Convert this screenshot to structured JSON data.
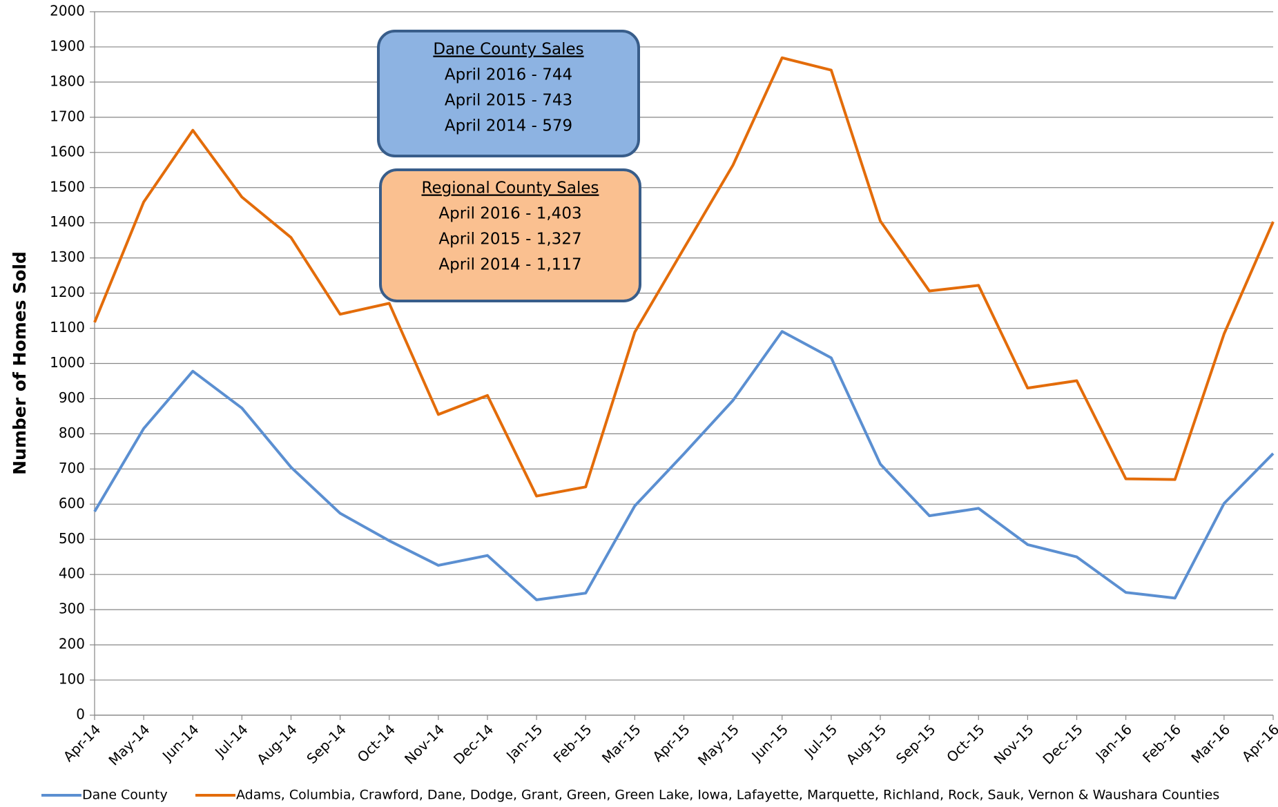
{
  "chart_data": {
    "type": "line",
    "y_label": "Number of Homes Sold",
    "categories": [
      "Apr-14",
      "May-14",
      "Jun-14",
      "Jul-14",
      "Aug-14",
      "Sep-14",
      "Oct-14",
      "Nov-14",
      "Dec-14",
      "Jan-15",
      "Feb-15",
      "Mar-15",
      "Apr-15",
      "May-15",
      "Jun-15",
      "Jul-15",
      "Aug-15",
      "Sep-15",
      "Oct-15",
      "Nov-15",
      "Dec-15",
      "Jan-16",
      "Feb-16",
      "Mar-16",
      "Apr-16"
    ],
    "series": [
      {
        "name": "Dane County",
        "color": "#5b8fd1",
        "values": [
          579,
          815,
          978,
          873,
          705,
          574,
          496,
          426,
          454,
          328,
          347,
          595,
          743,
          895,
          1091,
          1016,
          714,
          567,
          588,
          485,
          450,
          349,
          333,
          602,
          744
        ]
      },
      {
        "name": "Adams, Columbia, Crawford, Dane, Dodge, Grant, Green, Green Lake, Iowa, Lafayette, Marquette, Richland, Rock, Sauk, Vernon & Waushara Counties",
        "color": "#e36c0a",
        "values": [
          1117,
          1459,
          1663,
          1473,
          1358,
          1140,
          1171,
          855,
          909,
          623,
          649,
          1089,
          1327,
          1564,
          1869,
          1834,
          1405,
          1206,
          1222,
          930,
          951,
          672,
          670,
          1084,
          1403
        ]
      }
    ],
    "ylim": [
      0,
      2000
    ],
    "yticks": [
      0,
      100,
      200,
      300,
      400,
      500,
      600,
      700,
      800,
      900,
      1000,
      1100,
      1200,
      1300,
      1400,
      1500,
      1600,
      1700,
      1800,
      1900,
      2000
    ],
    "grid": true,
    "legend": "bottom",
    "annotations": [
      {
        "title": "Dane  County Sales",
        "lines": [
          "April 2016 - 744",
          "April 2015 - 743",
          "April 2014 - 579"
        ],
        "color": "#8db3e2"
      },
      {
        "title": "Regional County Sales",
        "lines": [
          "April 2016  - 1,403",
          "April 2015  - 1,327",
          "April 2014  - 1,117"
        ],
        "color": "#fac090"
      }
    ]
  }
}
